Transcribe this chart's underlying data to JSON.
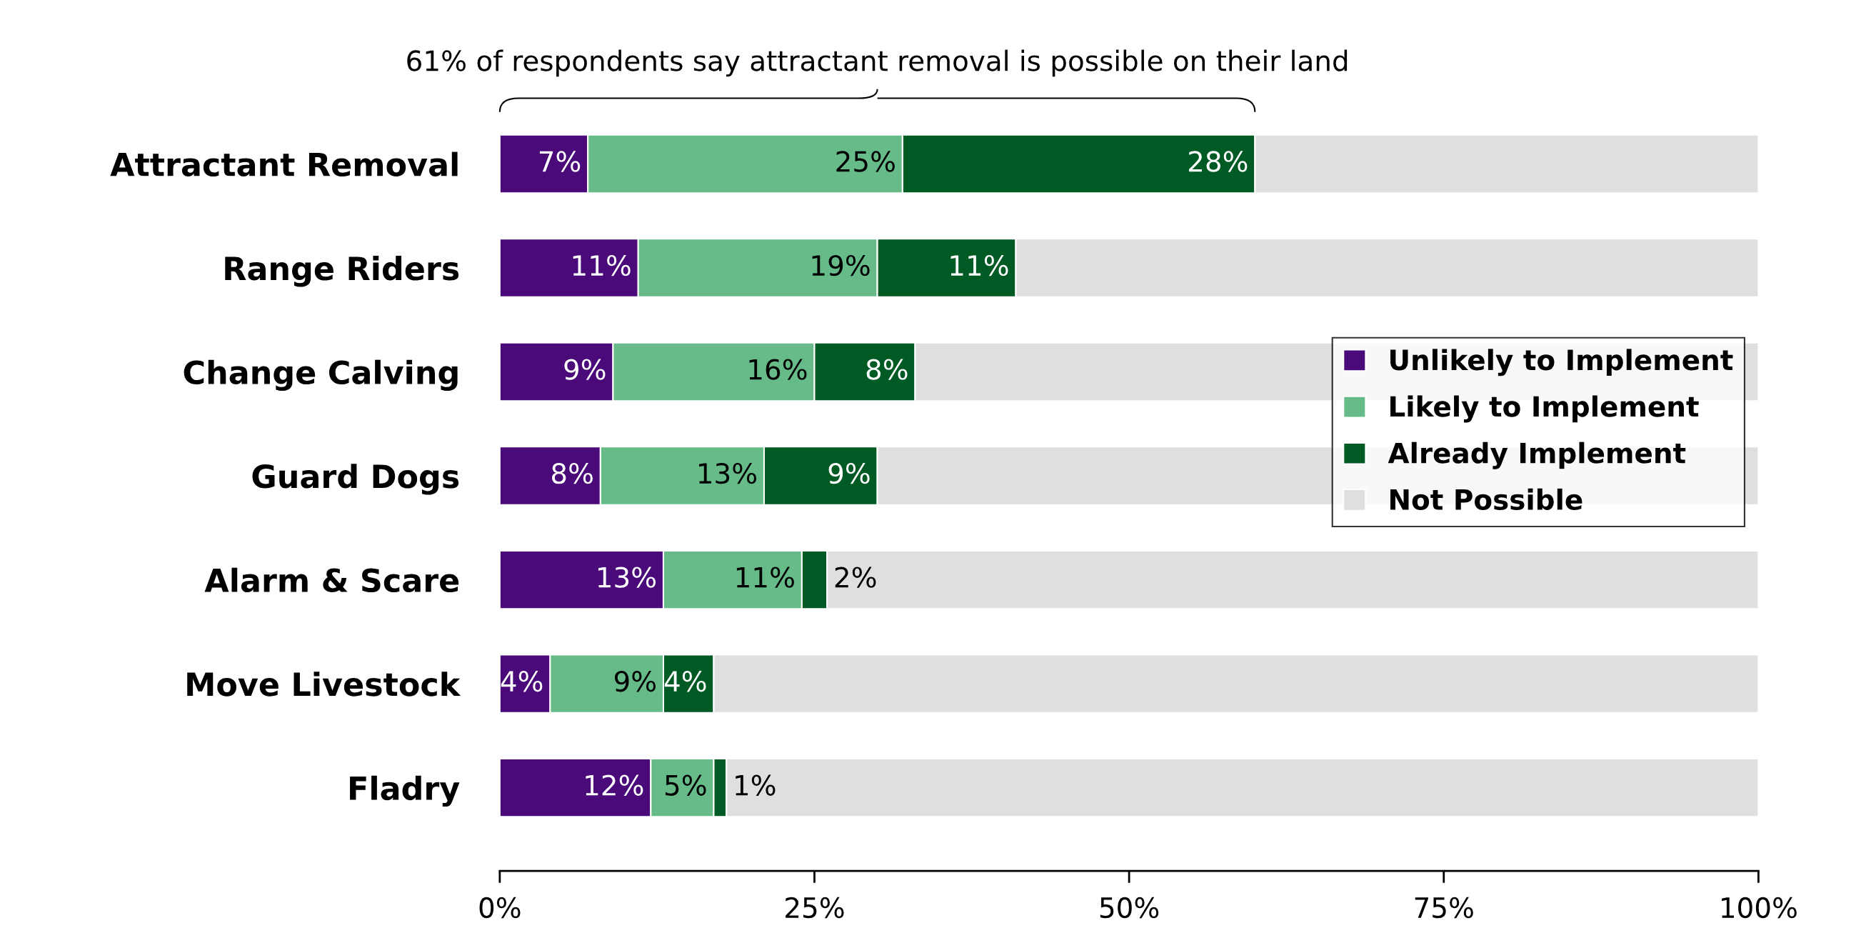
{
  "chart_data": {
    "type": "bar",
    "orientation": "horizontal",
    "stacked": true,
    "categories": [
      "Attractant Removal",
      "Range Riders",
      "Change Calving",
      "Guard Dogs",
      "Alarm & Scare",
      "Move Livestock",
      "Fladry"
    ],
    "series": [
      {
        "name": "Unlikely to Implement",
        "color": "#4b0a7a",
        "values": [
          7,
          11,
          9,
          8,
          13,
          4,
          12
        ],
        "value_labels": [
          "7%",
          "11%",
          "9%",
          "8%",
          "13%",
          "4%",
          "12%"
        ]
      },
      {
        "name": "Likely to Implement",
        "color": "#66bb88",
        "values": [
          25,
          19,
          16,
          13,
          11,
          9,
          5
        ],
        "value_labels": [
          "25%",
          "19%",
          "16%",
          "13%",
          "11%",
          "9%",
          "5%"
        ]
      },
      {
        "name": "Already Implement",
        "color": "#005a24",
        "values": [
          28,
          11,
          8,
          9,
          2,
          4,
          1
        ],
        "value_labels": [
          "28%",
          "11%",
          "8%",
          "9%",
          "2%",
          "4%",
          "1%"
        ]
      },
      {
        "name": "Not Possible",
        "color": "#e0dfdf",
        "values": [
          40,
          59,
          67,
          70,
          74,
          83,
          82
        ],
        "value_labels": [
          null,
          null,
          null,
          null,
          null,
          null,
          null
        ]
      }
    ],
    "xlim": [
      0,
      100
    ],
    "xticks": [
      {
        "value": 0,
        "label": "0%"
      },
      {
        "value": 25,
        "label": "25%"
      },
      {
        "value": 50,
        "label": "50%"
      },
      {
        "value": 75,
        "label": "75%"
      },
      {
        "value": 100,
        "label": "100%"
      }
    ],
    "grid": false,
    "legend": "right",
    "annotations": [
      "61% of respondents say attractant removal is possible on their land"
    ]
  }
}
